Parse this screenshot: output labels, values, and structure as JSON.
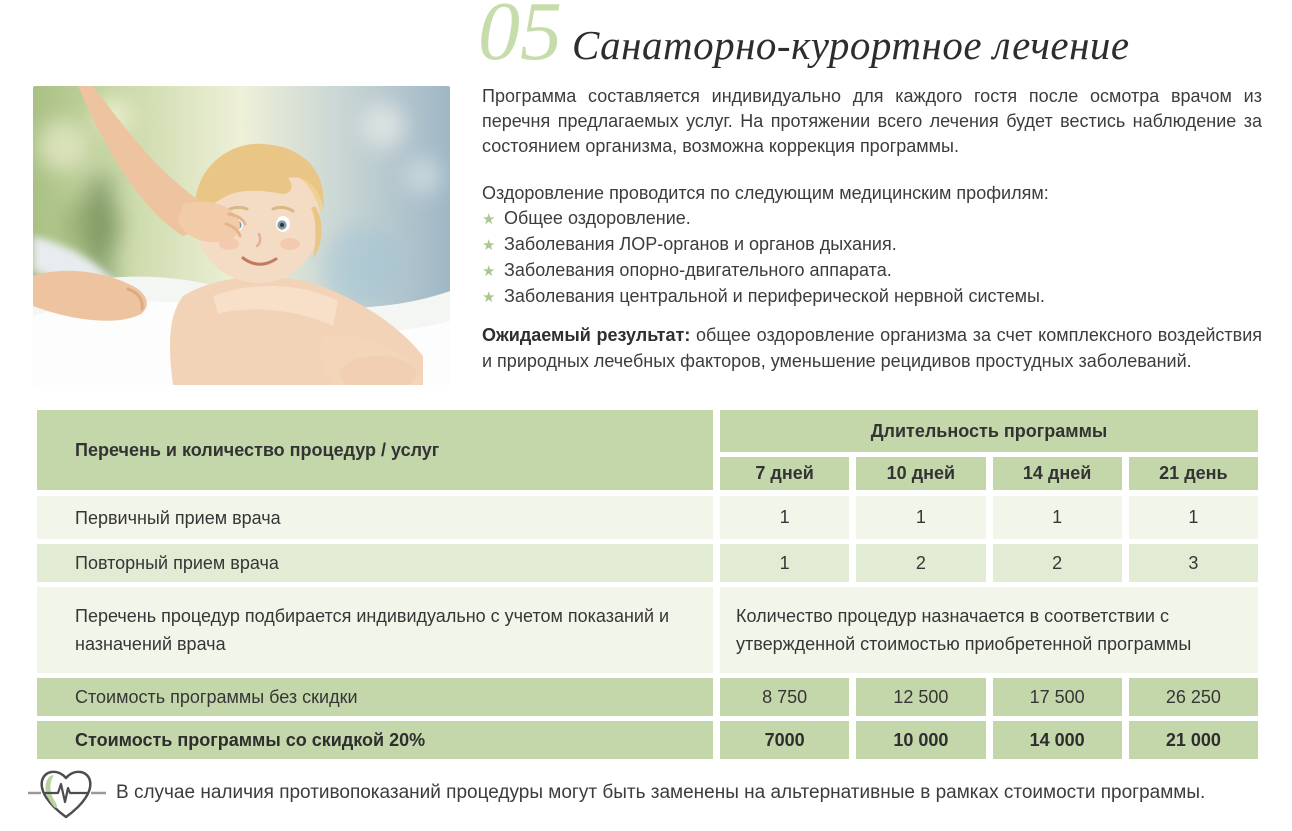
{
  "page": {
    "number": "05",
    "title": "Санаторно-курортное лечение"
  },
  "intro": {
    "paragraph1": "Программа составляется индивидуально для каждого гостя после осмотра врачом из перечня предлагаемых услуг. На протяжении всего лечения будет вестись наблюдение за состоянием организма, возможна коррекция программы.",
    "profiles_intro": "Оздоровление проводится по следующим медицинским профилям:",
    "profiles": [
      "Общее оздоровление.",
      "Заболевания ЛОР-органов и органов дыхания.",
      "Заболевания опорно-двигательного аппарата.",
      "Заболевания центральной и периферической нервной системы."
    ],
    "result_label": "Ожидаемый результат:",
    "result_text": " общее оздоровление организма за счет комплексного воздействия и природных лечебных факторов, уменьшение рецидивов простудных заболеваний."
  },
  "table": {
    "col_header_left": "Перечень и количество процедур / услуг",
    "duration_header": "Длительность программы",
    "duration_columns": [
      "7 дней",
      "10 дней",
      "14 дней",
      "21 день"
    ],
    "rows": [
      {
        "label": "Первичный прием врача",
        "values": [
          "1",
          "1",
          "1",
          "1"
        ],
        "style": "light"
      },
      {
        "label": "Повторный прием врача",
        "values": [
          "1",
          "2",
          "2",
          "3"
        ],
        "style": "mid"
      },
      {
        "label": "Перечень процедур подбирается индивидуально с учетом показаний и назначений врача",
        "merged": "Количество процедур назначается в соответствии с утвержденной стоимостью приобретенной программы",
        "style": "light"
      },
      {
        "label": "Стоимость программы без скидки",
        "values": [
          "8 750",
          "12 500",
          "17 500",
          "26 250"
        ],
        "style": "green"
      },
      {
        "label": "Стоимость программы со скидкой 20%",
        "values": [
          "7000",
          "10 000",
          "14 000",
          "21 000"
        ],
        "style": "green-bold"
      }
    ]
  },
  "footer": {
    "note": "В случае наличия противопоказаний процедуры могут быть заменены на альтернативные в рамках стоимости программы."
  },
  "colors": {
    "accent_green": "#c4d7ab",
    "row_light": "#f2f5ea",
    "row_mid": "#e2ecd4",
    "star_green": "#a9c78e",
    "number_green": "#c7dcab",
    "text": "#3c3c3c"
  },
  "icons": {
    "bullet": "star-bullet-icon",
    "footnote": "heart-ekg-icon"
  }
}
